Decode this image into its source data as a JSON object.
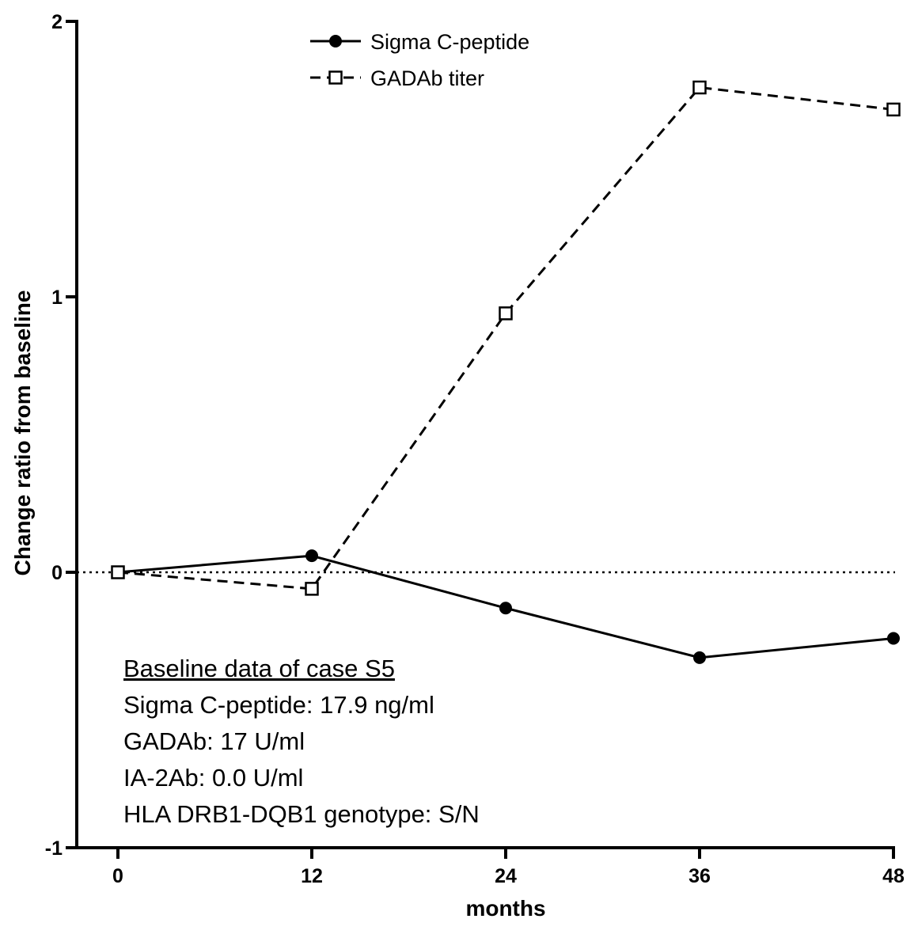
{
  "chart_data": {
    "type": "line",
    "xlabel": "months",
    "ylabel": "Change ratio from baseline",
    "xlim": [
      0,
      48
    ],
    "ylim": [
      -1,
      2
    ],
    "x_ticks": [
      "0",
      "12",
      "24",
      "36",
      "48"
    ],
    "y_ticks": [
      "-1",
      "0",
      "1",
      "2"
    ],
    "x": [
      0,
      12,
      24,
      36,
      48
    ],
    "zero_reference_line": true,
    "legend_placement": "top-center",
    "series": [
      {
        "name": "Sigma C-peptide",
        "marker": "filled-circle",
        "line": "solid",
        "values": [
          0.0,
          0.06,
          -0.13,
          -0.31,
          -0.24
        ]
      },
      {
        "name": "GADAb titer",
        "marker": "open-square",
        "line": "dashed",
        "values": [
          0.0,
          -0.06,
          0.94,
          1.76,
          1.68
        ]
      }
    ],
    "annotation": {
      "heading": "Baseline data of case S5",
      "lines": [
        "Sigma C-peptide: 17.9 ng/ml",
        "GADAb: 17 U/ml",
        "IA-2Ab: 0.0 U/ml",
        "HLA DRB1-DQB1 genotype: S/N"
      ]
    }
  }
}
